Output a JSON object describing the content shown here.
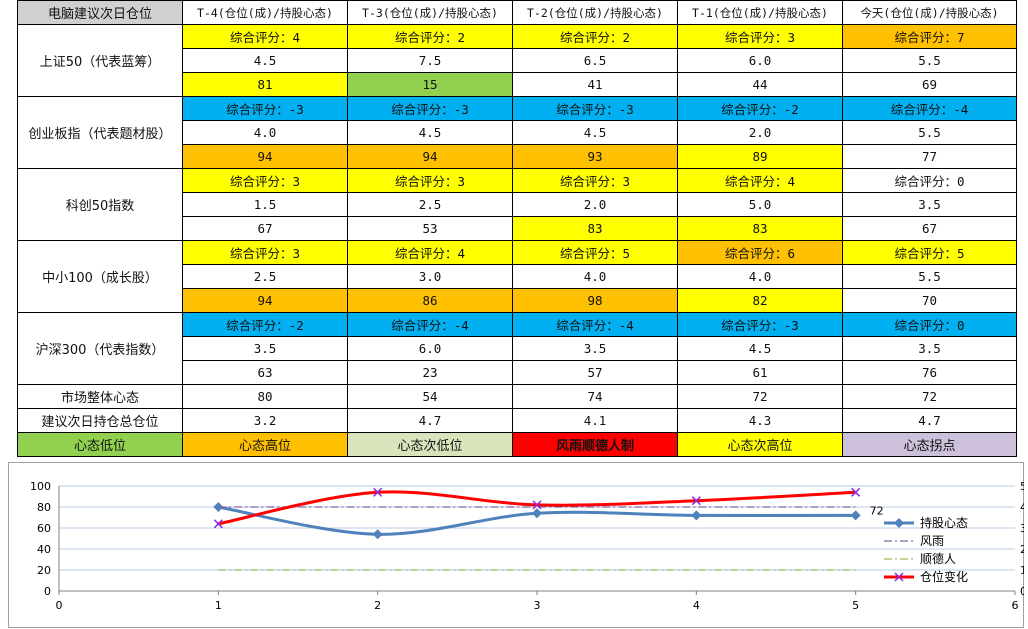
{
  "sheet": {
    "corner": "电脑建议次日仓位",
    "headers": [
      "T-4(仓位(成)/持股心态)",
      "T-3(仓位(成)/持股心态)",
      "T-2(仓位(成)/持股心态)",
      "T-1(仓位(成)/持股心态)",
      "今天(仓位(成)/持股心态)"
    ],
    "indices": [
      {
        "name": "上证50（代表蓝筹）",
        "rows": [
          [
            {
              "t": "综合评分：4",
              "bg": "#ffff00"
            },
            {
              "t": "综合评分：2",
              "bg": "#ffff00"
            },
            {
              "t": "综合评分：2",
              "bg": "#ffff00"
            },
            {
              "t": "综合评分：3",
              "bg": "#ffff00"
            },
            {
              "t": "综合评分：7",
              "bg": "#ffc000"
            }
          ],
          [
            {
              "t": "4.5",
              "bg": "#ffffff"
            },
            {
              "t": "7.5",
              "bg": "#ffffff"
            },
            {
              "t": "6.5",
              "bg": "#ffffff"
            },
            {
              "t": "6.0",
              "bg": "#ffffff"
            },
            {
              "t": "5.5",
              "bg": "#ffffff"
            }
          ],
          [
            {
              "t": "81",
              "bg": "#ffff00"
            },
            {
              "t": "15",
              "bg": "#92d050"
            },
            {
              "t": "41",
              "bg": "#ffffff"
            },
            {
              "t": "44",
              "bg": "#ffffff"
            },
            {
              "t": "69",
              "bg": "#ffffff"
            }
          ]
        ]
      },
      {
        "name": "创业板指（代表题材股）",
        "rows": [
          [
            {
              "t": "综合评分：-3",
              "bg": "#00b0f0"
            },
            {
              "t": "综合评分：-3",
              "bg": "#00b0f0"
            },
            {
              "t": "综合评分：-3",
              "bg": "#00b0f0"
            },
            {
              "t": "综合评分：-2",
              "bg": "#00b0f0"
            },
            {
              "t": "综合评分：-4",
              "bg": "#00b0f0"
            }
          ],
          [
            {
              "t": "4.0",
              "bg": "#ffffff"
            },
            {
              "t": "4.5",
              "bg": "#ffffff"
            },
            {
              "t": "4.5",
              "bg": "#ffffff"
            },
            {
              "t": "2.0",
              "bg": "#ffffff"
            },
            {
              "t": "5.5",
              "bg": "#ffffff"
            }
          ],
          [
            {
              "t": "94",
              "bg": "#ffc000"
            },
            {
              "t": "94",
              "bg": "#ffc000"
            },
            {
              "t": "93",
              "bg": "#ffc000"
            },
            {
              "t": "89",
              "bg": "#ffff00"
            },
            {
              "t": "77",
              "bg": "#ffffff"
            }
          ]
        ]
      },
      {
        "name": "科创50指数",
        "rows": [
          [
            {
              "t": "综合评分：3",
              "bg": "#ffff00"
            },
            {
              "t": "综合评分：3",
              "bg": "#ffff00"
            },
            {
              "t": "综合评分：3",
              "bg": "#ffff00"
            },
            {
              "t": "综合评分：4",
              "bg": "#ffff00"
            },
            {
              "t": "综合评分：0",
              "bg": "#ffffff"
            }
          ],
          [
            {
              "t": "1.5",
              "bg": "#ffffff"
            },
            {
              "t": "2.5",
              "bg": "#ffffff"
            },
            {
              "t": "2.0",
              "bg": "#ffffff"
            },
            {
              "t": "5.0",
              "bg": "#ffffff"
            },
            {
              "t": "3.5",
              "bg": "#ffffff"
            }
          ],
          [
            {
              "t": "67",
              "bg": "#ffffff"
            },
            {
              "t": "53",
              "bg": "#ffffff"
            },
            {
              "t": "83",
              "bg": "#ffff00"
            },
            {
              "t": "83",
              "bg": "#ffff00"
            },
            {
              "t": "67",
              "bg": "#ffffff"
            }
          ]
        ]
      },
      {
        "name": "中小100（成长股）",
        "rows": [
          [
            {
              "t": "综合评分：3",
              "bg": "#ffff00"
            },
            {
              "t": "综合评分：4",
              "bg": "#ffff00"
            },
            {
              "t": "综合评分：5",
              "bg": "#ffff00"
            },
            {
              "t": "综合评分：6",
              "bg": "#ffc000"
            },
            {
              "t": "综合评分：5",
              "bg": "#ffff00"
            }
          ],
          [
            {
              "t": "2.5",
              "bg": "#ffffff"
            },
            {
              "t": "3.0",
              "bg": "#ffffff"
            },
            {
              "t": "4.0",
              "bg": "#ffffff"
            },
            {
              "t": "4.0",
              "bg": "#ffffff"
            },
            {
              "t": "5.5",
              "bg": "#ffffff"
            }
          ],
          [
            {
              "t": "94",
              "bg": "#ffc000"
            },
            {
              "t": "86",
              "bg": "#ffc000"
            },
            {
              "t": "98",
              "bg": "#ffc000"
            },
            {
              "t": "82",
              "bg": "#ffff00"
            },
            {
              "t": "70",
              "bg": "#ffffff"
            }
          ]
        ]
      },
      {
        "name": "沪深300（代表指数）",
        "rows": [
          [
            {
              "t": "综合评分：-2",
              "bg": "#00b0f0"
            },
            {
              "t": "综合评分：-4",
              "bg": "#00b0f0"
            },
            {
              "t": "综合评分：-4",
              "bg": "#00b0f0"
            },
            {
              "t": "综合评分：-3",
              "bg": "#00b0f0"
            },
            {
              "t": "综合评分：0",
              "bg": "#00b0f0"
            }
          ],
          [
            {
              "t": "3.5",
              "bg": "#ffffff"
            },
            {
              "t": "6.0",
              "bg": "#ffffff"
            },
            {
              "t": "3.5",
              "bg": "#ffffff"
            },
            {
              "t": "4.5",
              "bg": "#ffffff"
            },
            {
              "t": "3.5",
              "bg": "#ffffff"
            }
          ],
          [
            {
              "t": "63",
              "bg": "#ffffff"
            },
            {
              "t": "23",
              "bg": "#ffffff"
            },
            {
              "t": "57",
              "bg": "#ffffff"
            },
            {
              "t": "61",
              "bg": "#ffffff"
            },
            {
              "t": "76",
              "bg": "#ffffff"
            }
          ]
        ]
      }
    ],
    "market_row": {
      "label": "市场整体心态",
      "values": [
        "80",
        "54",
        "74",
        "72",
        "72"
      ]
    },
    "position_row": {
      "label": "建议次日持仓总仓位",
      "values": [
        "3.2",
        "4.7",
        "4.1",
        "4.3",
        "4.7"
      ]
    },
    "legend_row": [
      {
        "t": "心态低位",
        "bg": "#92d050",
        "fg": "#111111"
      },
      {
        "t": "心态高位",
        "bg": "#ffc000",
        "fg": "#111111"
      },
      {
        "t": "心态次低位",
        "bg": "#d8e4bc",
        "fg": "#111111"
      },
      {
        "t": "风雨顺德人制",
        "bg": "#ff0000",
        "fg": "#111111"
      },
      {
        "t": "心态次高位",
        "bg": "#ffff00",
        "fg": "#111111"
      },
      {
        "t": "心态拐点",
        "bg": "#ccc0da",
        "fg": "#111111"
      }
    ]
  },
  "chart_data": {
    "type": "line",
    "x": [
      1,
      2,
      3,
      4,
      5
    ],
    "xlim": [
      0,
      6
    ],
    "xticks": [
      "0",
      "1",
      "2",
      "3",
      "4",
      "5",
      "6"
    ],
    "ylim": [
      0,
      100
    ],
    "yticks": [
      "0",
      "20",
      "40",
      "60",
      "80",
      "100"
    ],
    "y2ticks": [
      "0",
      "1",
      "2",
      "3",
      "4",
      "5"
    ],
    "y2lim": [
      0,
      5
    ],
    "grid": true,
    "legend_position": "right",
    "series": [
      {
        "name": "持股心态",
        "values": [
          80,
          54,
          74,
          72,
          72
        ],
        "color": "#4f81bd",
        "marker": "diamond",
        "axis": "left",
        "last_label": "72"
      },
      {
        "name": "风雨",
        "values": [
          80,
          80,
          80,
          80,
          80
        ],
        "color": "#8064a2",
        "dash": "dashdot",
        "axis": "left"
      },
      {
        "name": "顺德人",
        "values": [
          20,
          20,
          20,
          20,
          20
        ],
        "color": "#9bbb59",
        "dash": "dashdot",
        "axis": "left"
      },
      {
        "name": "仓位变化",
        "values": [
          3.2,
          4.7,
          4.1,
          4.3,
          4.7
        ],
        "color": "#ff0000",
        "marker": "x",
        "axis": "right"
      }
    ]
  }
}
